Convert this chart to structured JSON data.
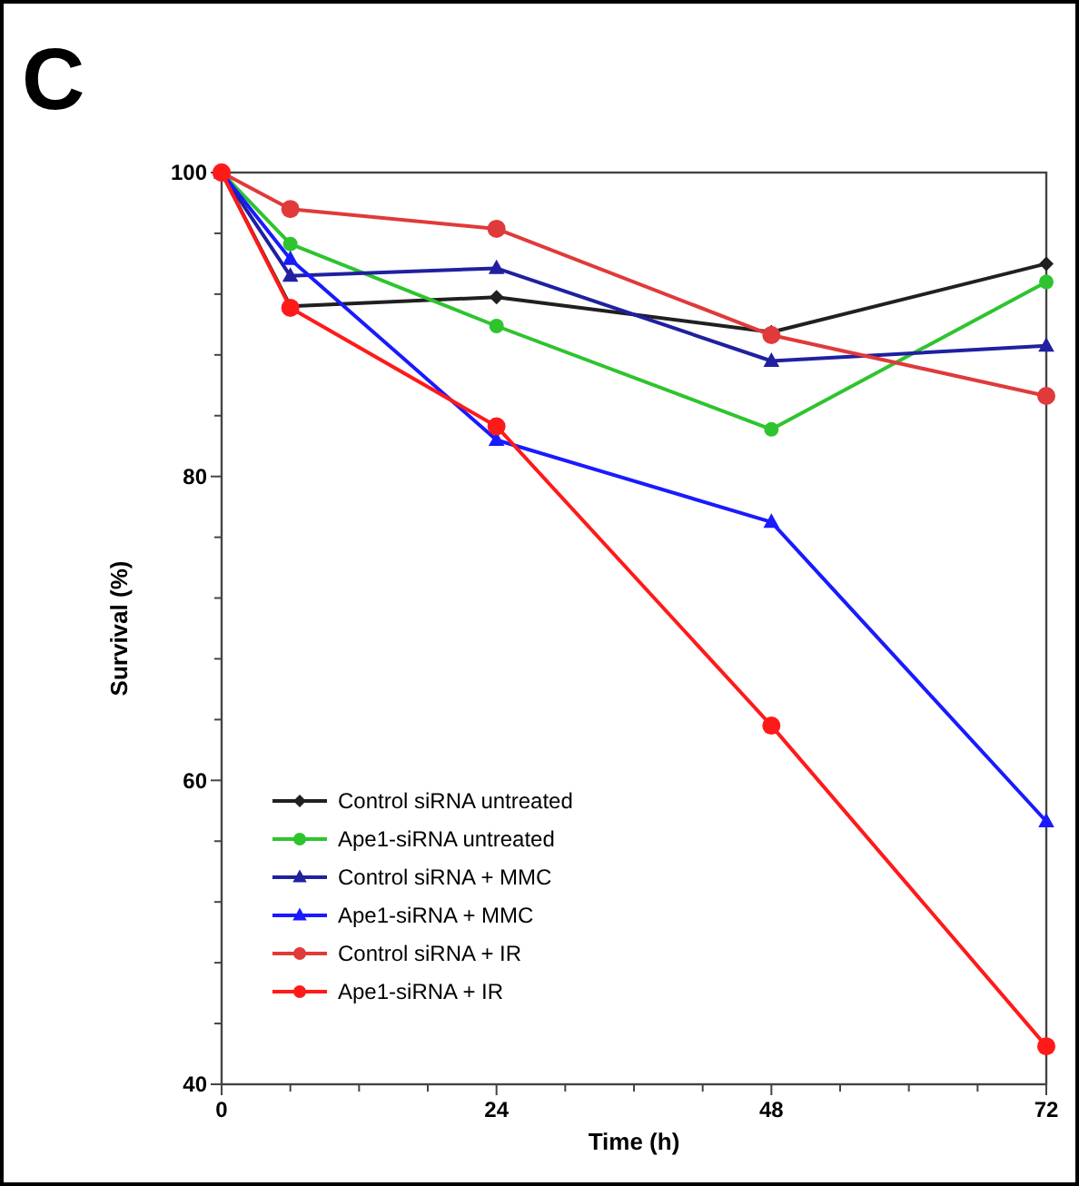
{
  "chart_data": {
    "type": "line",
    "title": "C",
    "xlabel": "Time (h)",
    "ylabel": "Survival (%)",
    "x": [
      0,
      6,
      24,
      48,
      72
    ],
    "xlim": [
      0,
      72
    ],
    "xticks": [
      0,
      {
        "value": 6,
        "label": null
      },
      {
        "value": 12,
        "label": null
      },
      {
        "value": 18,
        "label": null
      },
      24,
      {
        "value": 30,
        "label": null
      },
      {
        "value": 36,
        "label": null
      },
      {
        "value": 42,
        "label": null
      },
      48,
      {
        "value": 54,
        "label": null
      },
      {
        "value": 60,
        "label": null
      },
      {
        "value": 66,
        "label": null
      },
      72
    ],
    "ylim": [
      40,
      100
    ],
    "yticks": [
      40,
      {
        "value": 44,
        "label": null
      },
      {
        "value": 48,
        "label": null
      },
      {
        "value": 52,
        "label": null
      },
      {
        "value": 56,
        "label": null
      },
      60,
      {
        "value": 64,
        "label": null
      },
      {
        "value": 68,
        "label": null
      },
      {
        "value": 72,
        "label": null
      },
      {
        "value": 76,
        "label": null
      },
      80,
      {
        "value": 84,
        "label": null
      },
      {
        "value": 88,
        "label": null
      },
      {
        "value": 92,
        "label": null
      },
      {
        "value": 96,
        "label": null
      },
      100
    ],
    "grid": false,
    "legend": "bottom left",
    "line_style": "solid",
    "series": [
      {
        "name": "Control siRNA untreated",
        "color": "#202020",
        "marker": "diamond",
        "values": [
          100,
          91.2,
          91.8,
          89.5,
          94.0
        ]
      },
      {
        "name": "Ape1-siRNA untreated",
        "color": "#2ec42e",
        "marker": "circle",
        "values": [
          100,
          95.3,
          89.9,
          83.1,
          92.8
        ]
      },
      {
        "name": "Control siRNA + MMC",
        "color": "#2020a0",
        "marker": "triangle",
        "values": [
          100,
          93.2,
          93.7,
          87.6,
          88.6
        ]
      },
      {
        "name": "Ape1-siRNA + MMC",
        "color": "#1a1aff",
        "marker": "triangle",
        "values": [
          100,
          94.3,
          82.4,
          77.0,
          57.3
        ]
      },
      {
        "name": "Control siRNA + IR",
        "color": "#e03a3a",
        "marker": "circle",
        "values": [
          100,
          97.6,
          96.3,
          89.3,
          85.3
        ]
      },
      {
        "name": "Ape1-siRNA + IR",
        "color": "#ff1a1a",
        "marker": "circle",
        "values": [
          100,
          91.1,
          83.3,
          63.6,
          42.5
        ]
      }
    ]
  }
}
